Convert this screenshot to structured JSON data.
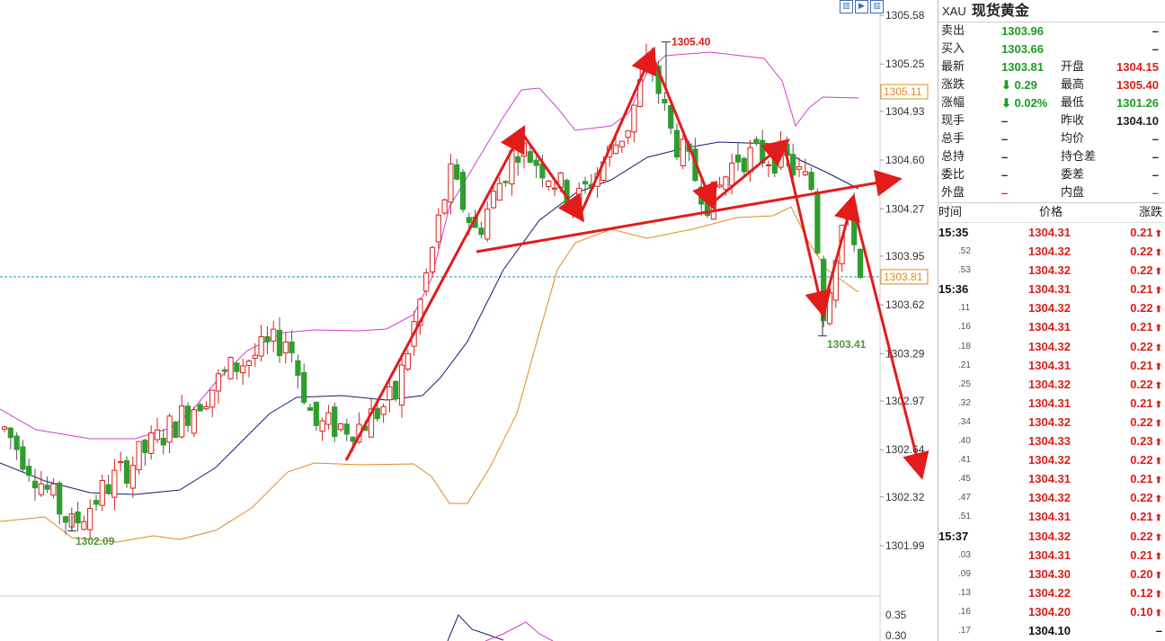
{
  "chart_data": {
    "type": "candlestick",
    "y_axis_ticks": [
      "1305.58",
      "1305.25",
      "1304.93",
      "1304.60",
      "1304.27",
      "1303.95",
      "1303.62",
      "1303.29",
      "1302.97",
      "1302.64",
      "1302.32",
      "1301.99"
    ],
    "indicator_ticks": [
      "0.35",
      "0.30"
    ],
    "price_tag_upper": "1305.11",
    "price_tag_last": "1303.81",
    "annotations": {
      "high": "1305.40",
      "low_left": "1302.09",
      "low_right": "1303.41"
    },
    "colors": {
      "up": "#d9201b",
      "down": "#2e9e2e",
      "boll_upper": "#d43cd4",
      "boll_mid": "#1a1a6e",
      "boll_lower": "#e08a1e",
      "arrows": "#e31b1b",
      "last_line": "#2a8ac0"
    }
  },
  "toolbar": {
    "icons": [
      "zoom-in-icon",
      "play-icon",
      "zoom-out-icon"
    ]
  },
  "panel": {
    "symbol": "XAU",
    "name": "现货黄金",
    "quote_rows": [
      {
        "l1": "卖出",
        "v1": "1303.96",
        "c1": "green",
        "l2": "",
        "v2": "–",
        "c2": ""
      },
      {
        "l1": "买入",
        "v1": "1303.66",
        "c1": "green",
        "l2": "",
        "v2": "–",
        "c2": ""
      },
      {
        "l1": "最新",
        "v1": "1303.81",
        "c1": "green",
        "l2": "开盘",
        "v2": "1304.15",
        "c2": "red"
      },
      {
        "l1": "涨跌",
        "v1": "⬇ 0.29",
        "c1": "green",
        "l2": "最高",
        "v2": "1305.40",
        "c2": "red"
      },
      {
        "l1": "涨幅",
        "v1": "⬇ 0.02%",
        "c1": "green",
        "l2": "最低",
        "v2": "1301.26",
        "c2": "green"
      },
      {
        "l1": "现手",
        "v1": "–",
        "c1": "",
        "l2": "昨收",
        "v2": "1304.10",
        "c2": ""
      },
      {
        "l1": "总手",
        "v1": "–",
        "c1": "",
        "l2": "均价",
        "v2": "–",
        "c2": ""
      },
      {
        "l1": "总持",
        "v1": "–",
        "c1": "",
        "l2": "持仓差",
        "v2": "–",
        "c2": ""
      },
      {
        "l1": "委比",
        "v1": "–",
        "c1": "",
        "l2": "委差",
        "v2": "–",
        "c2": ""
      },
      {
        "l1": "外盘",
        "v1": "–",
        "c1": "red",
        "l2": "内盘",
        "v2": "–",
        "c2": "green"
      }
    ],
    "ticks_header": {
      "time": "时间",
      "price": "价格",
      "change": "涨跌"
    },
    "ticks": [
      {
        "t": "15:35",
        "full": true,
        "p": "1304.31",
        "c": "0.21",
        "up": true
      },
      {
        "t": ".52",
        "full": false,
        "p": "1304.32",
        "c": "0.22",
        "up": true
      },
      {
        "t": ".53",
        "full": false,
        "p": "1304.32",
        "c": "0.22",
        "up": true
      },
      {
        "t": "15:36",
        "full": true,
        "p": "1304.31",
        "c": "0.21",
        "up": true
      },
      {
        "t": ".11",
        "full": false,
        "p": "1304.32",
        "c": "0.22",
        "up": true
      },
      {
        "t": ".16",
        "full": false,
        "p": "1304.31",
        "c": "0.21",
        "up": true
      },
      {
        "t": ".18",
        "full": false,
        "p": "1304.32",
        "c": "0.22",
        "up": true
      },
      {
        "t": ".21",
        "full": false,
        "p": "1304.31",
        "c": "0.21",
        "up": true
      },
      {
        "t": ".25",
        "full": false,
        "p": "1304.32",
        "c": "0.22",
        "up": true
      },
      {
        "t": ".32",
        "full": false,
        "p": "1304.31",
        "c": "0.21",
        "up": true
      },
      {
        "t": ".34",
        "full": false,
        "p": "1304.32",
        "c": "0.22",
        "up": true
      },
      {
        "t": ".40",
        "full": false,
        "p": "1304.33",
        "c": "0.23",
        "up": true
      },
      {
        "t": ".41",
        "full": false,
        "p": "1304.32",
        "c": "0.22",
        "up": true
      },
      {
        "t": ".45",
        "full": false,
        "p": "1304.31",
        "c": "0.21",
        "up": true
      },
      {
        "t": ".47",
        "full": false,
        "p": "1304.32",
        "c": "0.22",
        "up": true
      },
      {
        "t": ".51",
        "full": false,
        "p": "1304.31",
        "c": "0.21",
        "up": true
      },
      {
        "t": "15:37",
        "full": true,
        "p": "1304.32",
        "c": "0.22",
        "up": true
      },
      {
        "t": ".03",
        "full": false,
        "p": "1304.31",
        "c": "0.21",
        "up": true
      },
      {
        "t": ".09",
        "full": false,
        "p": "1304.30",
        "c": "0.20",
        "up": true
      },
      {
        "t": ".13",
        "full": false,
        "p": "1304.22",
        "c": "0.12",
        "up": true
      },
      {
        "t": ".16",
        "full": false,
        "p": "1304.20",
        "c": "0.10",
        "up": true
      },
      {
        "t": ".17",
        "full": false,
        "p": "1304.10",
        "c": "–",
        "up": false
      }
    ]
  }
}
